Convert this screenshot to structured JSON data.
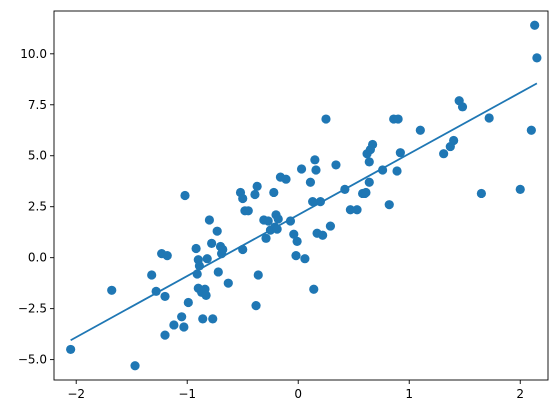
{
  "chart_data": {
    "type": "scatter",
    "title": "",
    "xlabel": "",
    "ylabel": "",
    "xlim": [
      -2.2,
      2.25
    ],
    "ylim": [
      -6.0,
      12.1
    ],
    "x_ticks": [
      -2,
      -1,
      0,
      1,
      2
    ],
    "x_tick_labels": [
      "−2",
      "−1",
      "0",
      "1",
      "2"
    ],
    "y_ticks": [
      -5.0,
      -2.5,
      0.0,
      2.5,
      5.0,
      7.5,
      10.0
    ],
    "y_tick_labels": [
      "−5.0",
      "−2.5",
      "0.0",
      "2.5",
      "5.0",
      "7.5",
      "10.0"
    ],
    "grid": false,
    "colors": {
      "points": "#1f77b4",
      "line": "#1f77b4",
      "axes": "#000000"
    },
    "series": [
      {
        "type": "scatter",
        "x": [
          -2.05,
          -1.68,
          -1.47,
          -1.32,
          -1.28,
          -1.23,
          -1.2,
          -1.18,
          -1.2,
          -1.12,
          -1.05,
          -1.03,
          -1.02,
          -0.99,
          -0.92,
          -0.91,
          -0.9,
          -0.9,
          -0.89,
          -0.87,
          -0.86,
          -0.84,
          -0.83,
          -0.82,
          -0.8,
          -0.78,
          -0.77,
          -0.73,
          -0.72,
          -0.7,
          -0.69,
          -0.68,
          -0.63,
          -0.52,
          -0.5,
          -0.5,
          -0.48,
          -0.45,
          -0.39,
          -0.38,
          -0.37,
          -0.36,
          -0.31,
          -0.29,
          -0.27,
          -0.25,
          -0.22,
          -0.21,
          -0.2,
          -0.19,
          -0.18,
          -0.16,
          -0.11,
          -0.07,
          -0.04,
          -0.02,
          -0.01,
          0.03,
          0.06,
          0.11,
          0.13,
          0.14,
          0.15,
          0.16,
          0.17,
          0.2,
          0.22,
          0.25,
          0.29,
          0.34,
          0.42,
          0.47,
          0.53,
          0.58,
          0.6,
          0.61,
          0.62,
          0.64,
          0.64,
          0.65,
          0.67,
          0.76,
          0.82,
          0.86,
          0.89,
          0.9,
          0.92,
          1.1,
          1.31,
          1.37,
          1.4,
          1.45,
          1.48,
          1.65,
          1.72,
          2.0,
          2.1,
          2.13,
          2.15
        ],
        "y": [
          -4.5,
          -1.6,
          -5.3,
          -0.85,
          -1.65,
          0.2,
          -3.8,
          0.1,
          -1.9,
          -3.3,
          -2.9,
          -3.4,
          3.05,
          -2.2,
          0.45,
          -0.8,
          -1.5,
          -0.1,
          -0.4,
          -1.7,
          -3.0,
          -1.55,
          -1.85,
          -0.05,
          1.85,
          0.7,
          -3.0,
          1.3,
          -0.7,
          0.55,
          0.2,
          0.4,
          -1.25,
          3.2,
          2.9,
          0.4,
          2.3,
          2.3,
          3.1,
          -2.35,
          3.5,
          -0.85,
          1.85,
          0.95,
          1.8,
          1.35,
          3.2,
          1.5,
          2.1,
          1.4,
          1.9,
          3.95,
          3.85,
          1.8,
          1.15,
          0.1,
          0.8,
          4.35,
          -0.05,
          3.7,
          2.75,
          -1.55,
          4.8,
          4.3,
          1.2,
          2.75,
          1.1,
          6.8,
          1.55,
          4.55,
          3.35,
          2.35,
          2.35,
          3.15,
          3.15,
          3.2,
          5.1,
          4.7,
          3.7,
          5.3,
          5.55,
          4.3,
          2.6,
          6.8,
          4.25,
          6.8,
          5.15,
          6.25,
          5.1,
          5.45,
          5.75,
          7.7,
          7.4,
          3.15,
          6.85,
          3.35,
          6.25,
          11.4,
          9.8
        ]
      },
      {
        "type": "line",
        "x": [
          -2.05,
          2.15
        ],
        "y": [
          -4.05,
          8.55
        ]
      }
    ]
  }
}
